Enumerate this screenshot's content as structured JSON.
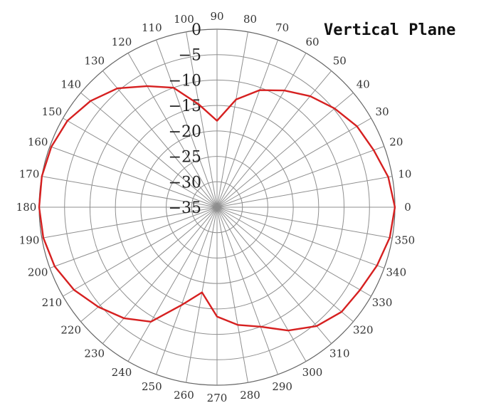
{
  "chart_data": {
    "type": "polar-line",
    "title": "Vertical Plane",
    "angle_labels": [
      "0",
      "10",
      "20",
      "30",
      "40",
      "50",
      "60",
      "70",
      "80",
      "90",
      "100",
      "110",
      "120",
      "130",
      "140",
      "150",
      "160",
      "170",
      "180",
      "190",
      "200",
      "210",
      "220",
      "230",
      "240",
      "250",
      "260",
      "270",
      "280",
      "290",
      "300",
      "310",
      "320",
      "330",
      "340",
      "350"
    ],
    "radial_labels": [
      "0",
      "−5",
      "−10",
      "−15",
      "−20",
      "−25",
      "−30",
      "−35"
    ],
    "radial_range": [
      -35,
      0
    ],
    "series_color": "#d62020",
    "series": [
      {
        "angles": [
          0,
          10,
          20,
          30,
          40,
          50,
          60,
          70,
          80,
          90,
          100,
          110,
          120,
          130,
          140,
          150,
          160,
          170,
          180,
          190,
          200,
          210,
          220,
          230,
          240,
          250,
          260,
          270,
          280,
          290,
          300,
          310,
          320,
          330,
          340,
          350,
          360
        ],
        "values": [
          0,
          -0.8,
          -2.2,
          -3.2,
          -4.8,
          -6.5,
          -8.5,
          -10.5,
          -13.5,
          -18,
          -14.5,
          -10,
          -7.5,
          -4.5,
          -2.5,
          -1,
          -0.3,
          0,
          0,
          -0.3,
          -1,
          -2.5,
          -4.5,
          -6.5,
          -9,
          -14.5,
          -18,
          -13.5,
          -11.5,
          -10,
          -7,
          -4.5,
          -3,
          -2.5,
          -1.5,
          -0.5,
          0
        ]
      }
    ]
  }
}
